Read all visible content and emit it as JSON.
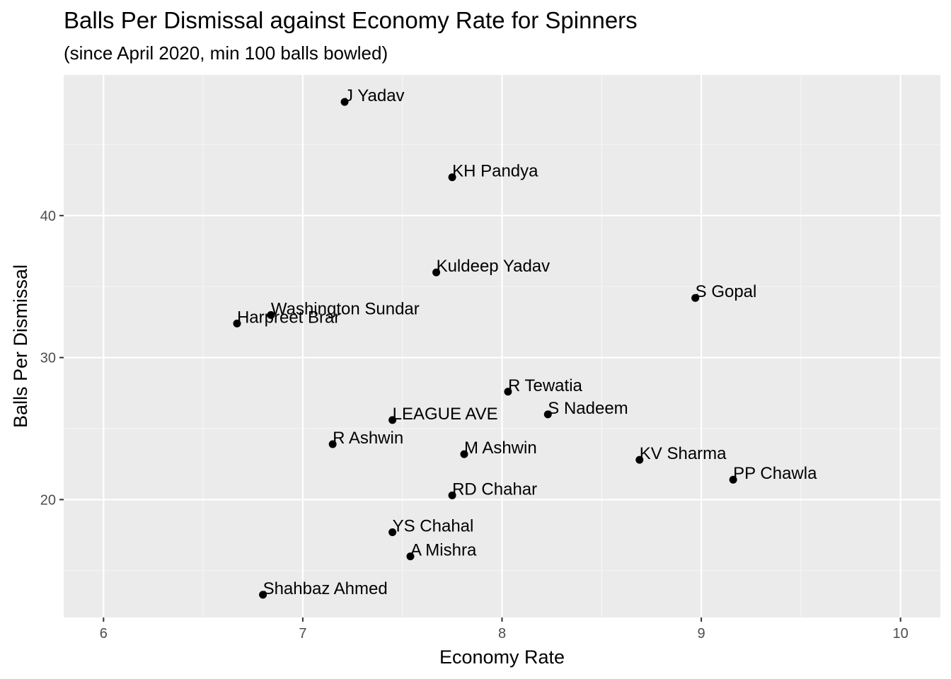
{
  "chart_data": {
    "type": "scatter",
    "title": "Balls Per Dismissal against Economy Rate for Spinners",
    "subtitle": "(since April 2020, min 100 balls bowled)",
    "xlabel": "Economy Rate",
    "ylabel": "Balls Per Dismissal",
    "xlim": [
      5.8,
      10.2
    ],
    "ylim": [
      11.7,
      49.9
    ],
    "xticks": [
      6,
      7,
      8,
      9,
      10
    ],
    "yticks": [
      20,
      30,
      40
    ],
    "grid": true,
    "legend": "none",
    "colors": {
      "panel": "#EBEBEB",
      "grid_major": "#FFFFFF",
      "grid_minor": "#F5F5F5",
      "point": "#000000",
      "tick_text": "#4D4D4D"
    },
    "points": [
      {
        "label": "J Yadav",
        "x": 7.21,
        "y": 48.0
      },
      {
        "label": "KH Pandya",
        "x": 7.75,
        "y": 42.7
      },
      {
        "label": "Kuldeep Yadav",
        "x": 7.67,
        "y": 36.0
      },
      {
        "label": "S Gopal",
        "x": 8.97,
        "y": 34.2
      },
      {
        "label": "Washington Sundar",
        "x": 6.84,
        "y": 33.0
      },
      {
        "label": "Harpreet Brar",
        "x": 6.67,
        "y": 32.4
      },
      {
        "label": "R Tewatia",
        "x": 8.03,
        "y": 27.6
      },
      {
        "label": "S Nadeem",
        "x": 8.23,
        "y": 26.0
      },
      {
        "label": "LEAGUE AVE",
        "x": 7.45,
        "y": 25.6
      },
      {
        "label": "R Ashwin",
        "x": 7.15,
        "y": 23.9
      },
      {
        "label": "M Ashwin",
        "x": 7.81,
        "y": 23.2
      },
      {
        "label": "KV Sharma",
        "x": 8.69,
        "y": 22.8
      },
      {
        "label": "PP Chawla",
        "x": 9.16,
        "y": 21.4
      },
      {
        "label": "RD Chahar",
        "x": 7.75,
        "y": 20.3
      },
      {
        "label": "YS Chahal",
        "x": 7.45,
        "y": 17.7
      },
      {
        "label": "A Mishra",
        "x": 7.54,
        "y": 16.0
      },
      {
        "label": "Shahbaz Ahmed",
        "x": 6.8,
        "y": 13.3
      }
    ]
  }
}
